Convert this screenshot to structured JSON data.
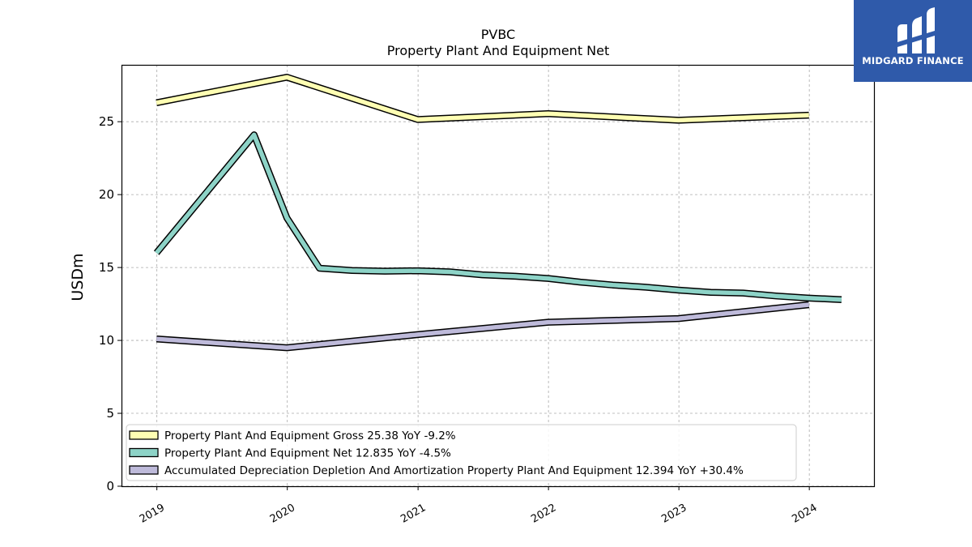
{
  "brand": {
    "name": "MIDGARD FINANCE",
    "color": "#2f5aaa",
    "icon": "midgard-logo-icon"
  },
  "chart_data": {
    "type": "line",
    "title": "PVBC",
    "subtitle": "Property Plant And Equipment Net",
    "xlabel": "",
    "ylabel": "USDm",
    "x_ticks": [
      "2019",
      "2020",
      "2021",
      "2022",
      "2023",
      "2024"
    ],
    "xlim": [
      "2018-09-24",
      "2024-06-30"
    ],
    "y_ticks": [
      0,
      5,
      10,
      15,
      20,
      25
    ],
    "ylim": [
      0,
      28.9
    ],
    "grid": true,
    "legend_position": "bottom-left",
    "series": [
      {
        "name": "Property Plant And Equipment Gross  25.38 YoY -9.2%",
        "color": "#ffffb3",
        "points": [
          {
            "x": "2018-12-31",
            "y": 26.3
          },
          {
            "x": "2019-12-31",
            "y": 28.05
          },
          {
            "x": "2020-12-31",
            "y": 25.15
          },
          {
            "x": "2021-12-31",
            "y": 25.55
          },
          {
            "x": "2022-12-31",
            "y": 25.1
          },
          {
            "x": "2023-12-31",
            "y": 25.45
          }
        ]
      },
      {
        "name": "Property Plant And Equipment Net  12.835 YoY -4.5%",
        "color": "#8dd3c7",
        "points": [
          {
            "x": "2018-12-31",
            "y": 16.0
          },
          {
            "x": "2019-09-30",
            "y": 24.1
          },
          {
            "x": "2019-12-31",
            "y": 18.4
          },
          {
            "x": "2020-03-31",
            "y": 14.95
          },
          {
            "x": "2020-06-30",
            "y": 14.8
          },
          {
            "x": "2020-09-30",
            "y": 14.75
          },
          {
            "x": "2020-12-31",
            "y": 14.78
          },
          {
            "x": "2021-03-31",
            "y": 14.7
          },
          {
            "x": "2021-06-30",
            "y": 14.5
          },
          {
            "x": "2021-09-30",
            "y": 14.4
          },
          {
            "x": "2021-12-31",
            "y": 14.25
          },
          {
            "x": "2022-03-31",
            "y": 14.0
          },
          {
            "x": "2022-06-30",
            "y": 13.8
          },
          {
            "x": "2022-09-30",
            "y": 13.65
          },
          {
            "x": "2022-12-31",
            "y": 13.45
          },
          {
            "x": "2023-03-31",
            "y": 13.3
          },
          {
            "x": "2023-06-30",
            "y": 13.25
          },
          {
            "x": "2023-09-30",
            "y": 13.05
          },
          {
            "x": "2023-12-31",
            "y": 12.9
          },
          {
            "x": "2024-03-31",
            "y": 12.8
          }
        ]
      },
      {
        "name": "Accumulated Depreciation Depletion And Amortization Property Plant And Equipment  12.394 YoY +30.4%",
        "color": "#bebada",
        "points": [
          {
            "x": "2018-12-31",
            "y": 10.1
          },
          {
            "x": "2019-12-31",
            "y": 9.5
          },
          {
            "x": "2020-12-31",
            "y": 10.4
          },
          {
            "x": "2021-12-31",
            "y": 11.25
          },
          {
            "x": "2022-12-31",
            "y": 11.5
          },
          {
            "x": "2023-12-31",
            "y": 12.45
          }
        ]
      }
    ]
  }
}
